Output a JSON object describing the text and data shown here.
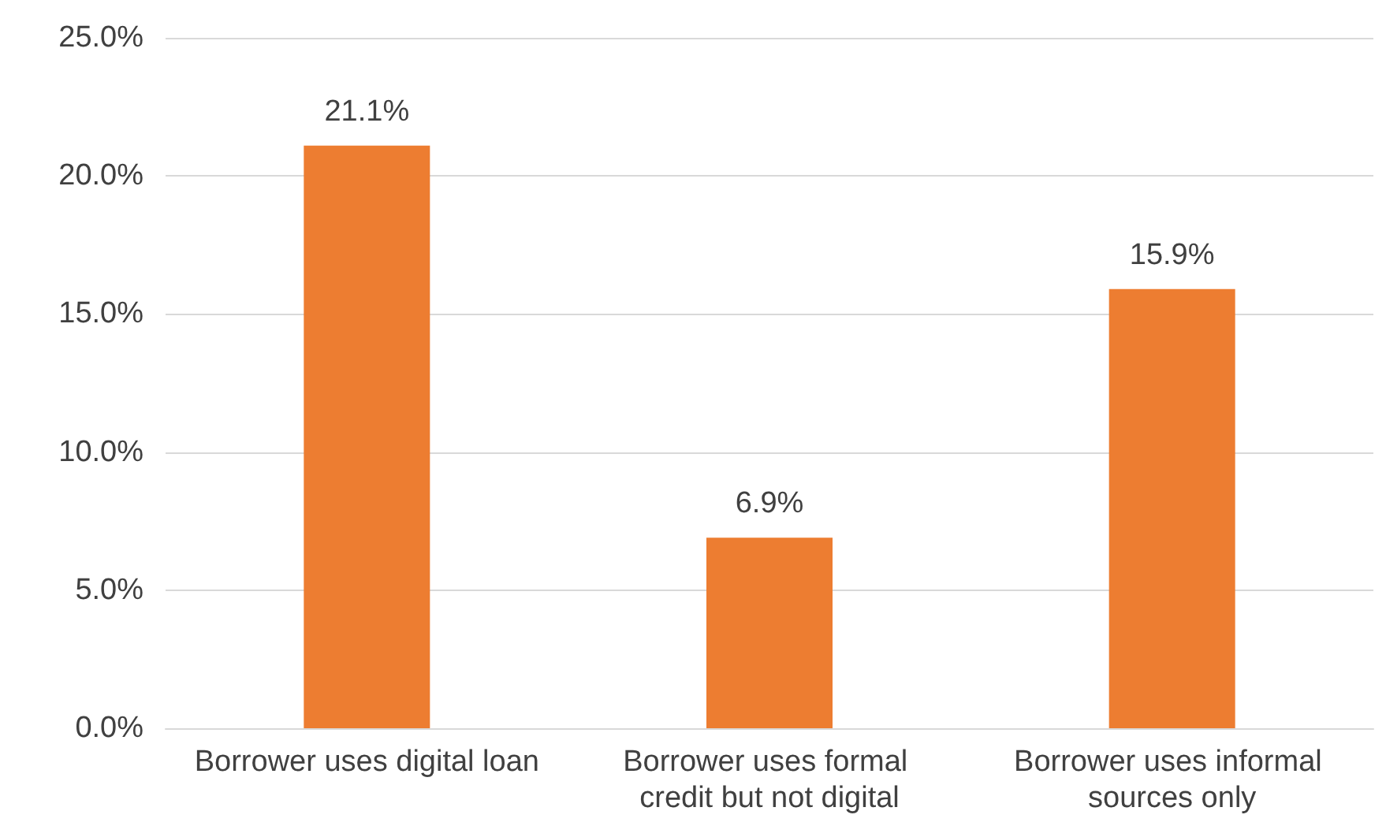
{
  "chart_data": {
    "type": "bar",
    "categories": [
      "Borrower uses digital loan",
      "Borrower uses formal credit but not digital",
      "Borrower uses informal sources only"
    ],
    "values": [
      21.1,
      6.9,
      15.9
    ],
    "value_labels": [
      "21.1%",
      "6.9%",
      "15.9%"
    ],
    "color": "#ed7d31",
    "ylim": [
      0,
      25
    ],
    "yticks": [
      {
        "value": 0,
        "label": "0.0%"
      },
      {
        "value": 5,
        "label": "5.0%"
      },
      {
        "value": 10,
        "label": "10.0%"
      },
      {
        "value": 15,
        "label": "15.0%"
      },
      {
        "value": 20,
        "label": "20.0%"
      },
      {
        "value": 25,
        "label": "25.0%"
      }
    ],
    "grid": "y"
  }
}
